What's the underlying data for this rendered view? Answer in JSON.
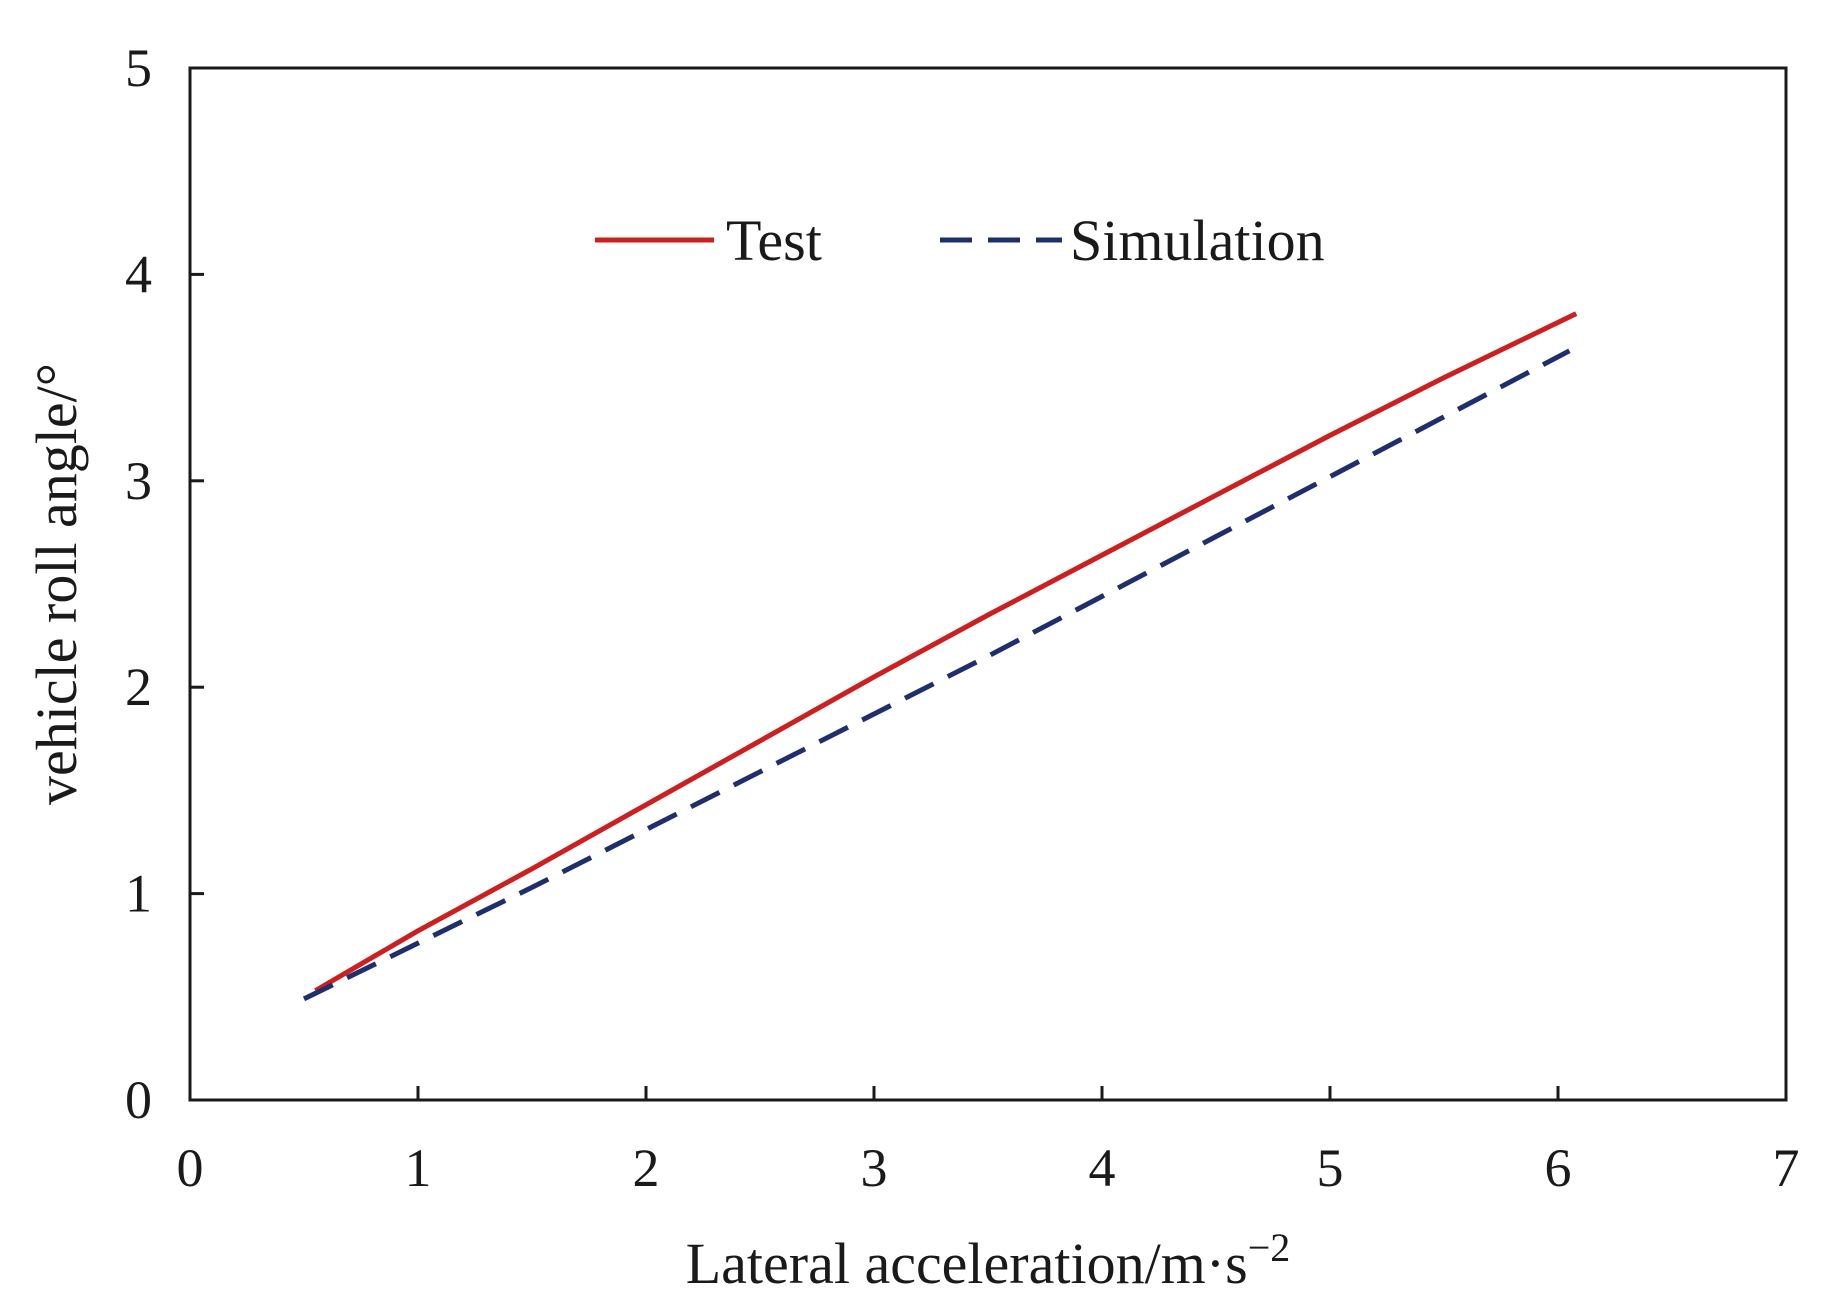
{
  "chart_data": {
    "type": "line",
    "title": "",
    "xlabel": "Lateral acceleration/m·s",
    "xlabel_superscript": "−2",
    "ylabel": "vehicle roll angle/°",
    "xlim": [
      0,
      7
    ],
    "ylim": [
      0,
      5
    ],
    "x_ticks": [
      "0",
      "1",
      "2",
      "3",
      "4",
      "5",
      "6",
      "7"
    ],
    "y_ticks": [
      "0",
      "1",
      "2",
      "3",
      "4",
      "5"
    ],
    "grid": false,
    "legend_position": "top-center",
    "series": [
      {
        "name": "Test",
        "color": "#cc1f1f",
        "style": "solid",
        "x": [
          0.55,
          1.0,
          1.5,
          2.0,
          2.5,
          3.0,
          3.5,
          4.0,
          4.5,
          5.0,
          5.5,
          6.08
        ],
        "y": [
          0.53,
          0.82,
          1.12,
          1.43,
          1.74,
          2.05,
          2.35,
          2.64,
          2.93,
          3.22,
          3.5,
          3.81
        ]
      },
      {
        "name": "Simulation",
        "color": "#1f2f6e",
        "style": "dashed",
        "x": [
          0.5,
          1.0,
          1.5,
          2.0,
          2.5,
          3.0,
          3.5,
          4.0,
          4.5,
          5.0,
          5.5,
          6.05
        ],
        "y": [
          0.49,
          0.76,
          1.03,
          1.31,
          1.59,
          1.87,
          2.15,
          2.44,
          2.73,
          3.02,
          3.31,
          3.63
        ]
      }
    ]
  }
}
